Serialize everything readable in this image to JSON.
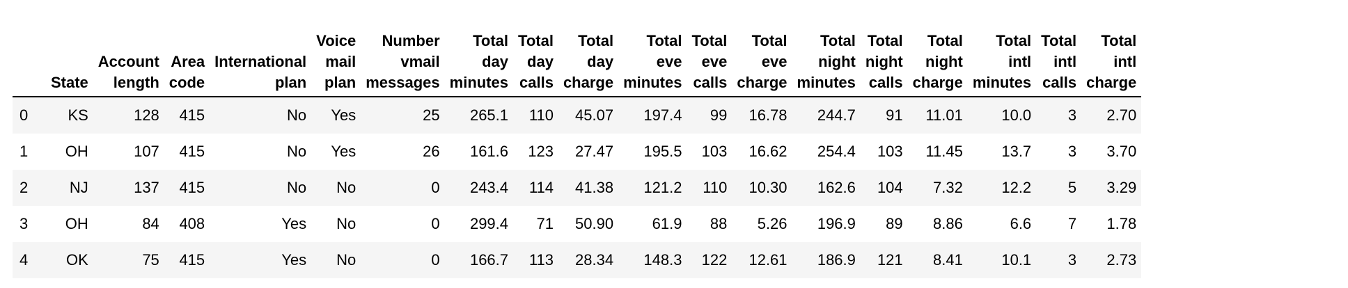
{
  "table": {
    "columns": [
      "State",
      "Account\nlength",
      "Area\ncode",
      "International\nplan",
      "Voice\nmail\nplan",
      "Number\nvmail\nmessages",
      "Total\nday\nminutes",
      "Total\nday\ncalls",
      "Total\nday\ncharge",
      "Total\neve\nminutes",
      "Total\neve\ncalls",
      "Total\neve\ncharge",
      "Total\nnight\nminutes",
      "Total\nnight\ncalls",
      "Total\nnight\ncharge",
      "Total\nintl\nminutes",
      "Total\nintl\ncalls",
      "Total\nintl\ncharge"
    ],
    "rows": [
      {
        "index": "0",
        "cells": [
          "KS",
          "128",
          "415",
          "No",
          "Yes",
          "25",
          "265.1",
          "110",
          "45.07",
          "197.4",
          "99",
          "16.78",
          "244.7",
          "91",
          "11.01",
          "10.0",
          "3",
          "2.70"
        ]
      },
      {
        "index": "1",
        "cells": [
          "OH",
          "107",
          "415",
          "No",
          "Yes",
          "26",
          "161.6",
          "123",
          "27.47",
          "195.5",
          "103",
          "16.62",
          "254.4",
          "103",
          "11.45",
          "13.7",
          "3",
          "3.70"
        ]
      },
      {
        "index": "2",
        "cells": [
          "NJ",
          "137",
          "415",
          "No",
          "No",
          "0",
          "243.4",
          "114",
          "41.38",
          "121.2",
          "110",
          "10.30",
          "162.6",
          "104",
          "7.32",
          "12.2",
          "5",
          "3.29"
        ]
      },
      {
        "index": "3",
        "cells": [
          "OH",
          "84",
          "408",
          "Yes",
          "No",
          "0",
          "299.4",
          "71",
          "50.90",
          "61.9",
          "88",
          "5.26",
          "196.9",
          "89",
          "8.86",
          "6.6",
          "7",
          "1.78"
        ]
      },
      {
        "index": "4",
        "cells": [
          "OK",
          "75",
          "415",
          "Yes",
          "No",
          "0",
          "166.7",
          "113",
          "28.34",
          "148.3",
          "122",
          "12.61",
          "186.9",
          "121",
          "8.41",
          "10.1",
          "3",
          "2.73"
        ]
      }
    ]
  }
}
